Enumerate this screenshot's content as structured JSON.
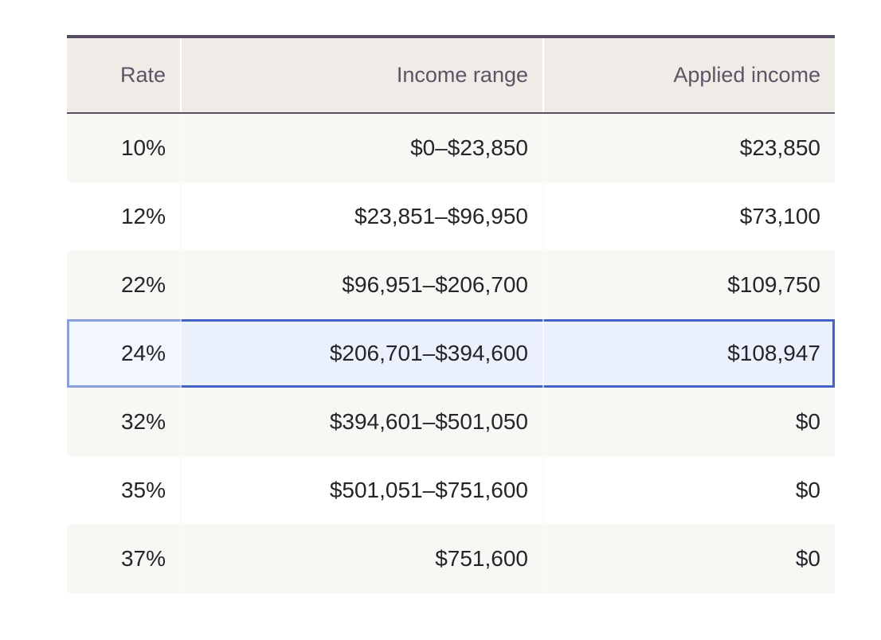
{
  "table": {
    "columns": [
      "Rate",
      "Income range",
      "Applied income"
    ],
    "rows": [
      {
        "rate": "10%",
        "income_range": "$0–$23,850",
        "applied_income": "$23,850",
        "highlighted": false
      },
      {
        "rate": "12%",
        "income_range": "$23,851–$96,950",
        "applied_income": "$73,100",
        "highlighted": false
      },
      {
        "rate": "22%",
        "income_range": "$96,951–$206,700",
        "applied_income": "$109,750",
        "highlighted": false
      },
      {
        "rate": "24%",
        "income_range": "$206,701–$394,600",
        "applied_income": "$108,947",
        "highlighted": true
      },
      {
        "rate": "32%",
        "income_range": "$394,601–$501,050",
        "applied_income": "$0",
        "highlighted": false
      },
      {
        "rate": "35%",
        "income_range": "$501,051–$751,600",
        "applied_income": "$0",
        "highlighted": false
      },
      {
        "rate": "37%",
        "income_range": "$751,600",
        "applied_income": "$0",
        "highlighted": false
      }
    ],
    "highlighted_row_index": 3,
    "colors": {
      "top_border": "#544b60",
      "header_background": "#efebe6",
      "header_text": "#5d5468",
      "row_odd_background": "#f8f7f4",
      "row_even_background": "#fffffe",
      "cell_text": "#26242b",
      "highlight_background": "#ebf1fc",
      "highlight_border": "#4562c6",
      "column_separator": "#ffffff"
    }
  }
}
